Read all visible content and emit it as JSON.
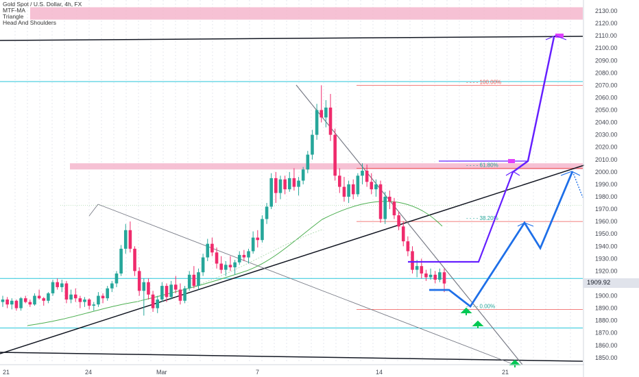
{
  "chart_data": {
    "type": "candlestick",
    "title": "Gold Spot / U.S. Dollar, 4h, FX",
    "indicators": [
      "MTF-MA",
      "Triangle",
      "Head And Shoulders"
    ],
    "ylim": [
      1842,
      2138
    ],
    "y_ticks": [
      "2130.00",
      "2120.00",
      "2110.00",
      "2100.00",
      "2090.00",
      "2080.00",
      "2070.00",
      "2060.00",
      "2050.00",
      "2040.00",
      "2030.00",
      "2020.00",
      "2010.00",
      "2000.00",
      "1990.00",
      "1980.00",
      "1970.00",
      "1960.00",
      "1950.00",
      "1940.00",
      "1930.00",
      "1920.00",
      "1910.00",
      "1900.00",
      "1890.00",
      "1880.00",
      "1870.00",
      "1860.00",
      "1850.00"
    ],
    "x_ticks": [
      "21",
      "24",
      "Mar",
      "7",
      "14",
      "21"
    ],
    "last_price": "1909.92",
    "fib_levels": [
      {
        "label": "100.00%",
        "value": 2070
      },
      {
        "label": "61.80%",
        "value": 2003
      },
      {
        "label": "38.20%",
        "value": 1960
      },
      {
        "label": "0.00%",
        "value": 1889
      }
    ],
    "horizontal_levels": [
      1914,
      2073,
      1874
    ],
    "pink_zones": [
      [
        2123,
        2133
      ],
      [
        2002,
        2007
      ]
    ],
    "candles_ohlc": [
      [
        1895,
        1900,
        1891,
        1897
      ],
      [
        1897,
        1899,
        1890,
        1893
      ],
      [
        1893,
        1898,
        1889,
        1896
      ],
      [
        1896,
        1897,
        1888,
        1890
      ],
      [
        1890,
        1899,
        1888,
        1898
      ],
      [
        1898,
        1900,
        1894,
        1895
      ],
      [
        1895,
        1897,
        1891,
        1893
      ],
      [
        1893,
        1902,
        1892,
        1900
      ],
      [
        1900,
        1905,
        1897,
        1898
      ],
      [
        1898,
        1899,
        1892,
        1896
      ],
      [
        1896,
        1903,
        1894,
        1902
      ],
      [
        1902,
        1913,
        1900,
        1911
      ],
      [
        1911,
        1914,
        1905,
        1907
      ],
      [
        1907,
        1913,
        1903,
        1910
      ],
      [
        1910,
        1912,
        1894,
        1897
      ],
      [
        1897,
        1905,
        1894,
        1901
      ],
      [
        1901,
        1906,
        1895,
        1898
      ],
      [
        1898,
        1900,
        1890,
        1895
      ],
      [
        1895,
        1899,
        1891,
        1897
      ],
      [
        1897,
        1898,
        1889,
        1892
      ],
      [
        1892,
        1895,
        1888,
        1893
      ],
      [
        1893,
        1903,
        1891,
        1900
      ],
      [
        1900,
        1902,
        1894,
        1898
      ],
      [
        1898,
        1908,
        1896,
        1906
      ],
      [
        1906,
        1912,
        1903,
        1910
      ],
      [
        1910,
        1920,
        1907,
        1918
      ],
      [
        1918,
        1941,
        1916,
        1938
      ],
      [
        1938,
        1958,
        1934,
        1953
      ],
      [
        1953,
        1960,
        1935,
        1938
      ],
      [
        1938,
        1940,
        1916,
        1920
      ],
      [
        1920,
        1923,
        1900,
        1904
      ],
      [
        1904,
        1914,
        1884,
        1911
      ],
      [
        1911,
        1914,
        1897,
        1901
      ],
      [
        1901,
        1904,
        1887,
        1890
      ],
      [
        1890,
        1900,
        1886,
        1897
      ],
      [
        1897,
        1911,
        1895,
        1908
      ],
      [
        1908,
        1910,
        1895,
        1899
      ],
      [
        1899,
        1912,
        1897,
        1909
      ],
      [
        1909,
        1916,
        1902,
        1905
      ],
      [
        1905,
        1910,
        1893,
        1896
      ],
      [
        1896,
        1908,
        1894,
        1906
      ],
      [
        1906,
        1920,
        1904,
        1917
      ],
      [
        1917,
        1924,
        1906,
        1908
      ],
      [
        1908,
        1922,
        1905,
        1919
      ],
      [
        1919,
        1934,
        1916,
        1931
      ],
      [
        1931,
        1946,
        1928,
        1942
      ],
      [
        1942,
        1947,
        1932,
        1935
      ],
      [
        1935,
        1939,
        1922,
        1926
      ],
      [
        1926,
        1932,
        1918,
        1921
      ],
      [
        1921,
        1928,
        1916,
        1925
      ],
      [
        1925,
        1932,
        1920,
        1923
      ],
      [
        1923,
        1929,
        1917,
        1927
      ],
      [
        1927,
        1936,
        1925,
        1933
      ],
      [
        1933,
        1937,
        1928,
        1931
      ],
      [
        1931,
        1938,
        1926,
        1936
      ],
      [
        1936,
        1952,
        1934,
        1947
      ],
      [
        1947,
        1953,
        1939,
        1945
      ],
      [
        1945,
        1965,
        1943,
        1962
      ],
      [
        1962,
        1975,
        1958,
        1972
      ],
      [
        1972,
        1999,
        1970,
        1995
      ],
      [
        1995,
        2000,
        1975,
        1983
      ],
      [
        1983,
        1997,
        1978,
        1994
      ],
      [
        1994,
        1997,
        1982,
        1986
      ],
      [
        1986,
        2000,
        1984,
        1995
      ],
      [
        1995,
        2003,
        1985,
        1988
      ],
      [
        1988,
        1996,
        1981,
        1993
      ],
      [
        1993,
        2004,
        1990,
        2002
      ],
      [
        2002,
        2017,
        1999,
        2014
      ],
      [
        2014,
        2034,
        2010,
        2030
      ],
      [
        2030,
        2055,
        2026,
        2050
      ],
      [
        2050,
        2070,
        2040,
        2044
      ],
      [
        2044,
        2058,
        2036,
        2052
      ],
      [
        2052,
        2063,
        2025,
        2030
      ],
      [
        2030,
        2035,
        1993,
        1997
      ],
      [
        1997,
        2003,
        1983,
        1988
      ],
      [
        1988,
        1996,
        1976,
        1980
      ],
      [
        1980,
        1993,
        1975,
        1990
      ],
      [
        1990,
        1994,
        1978,
        1982
      ],
      [
        1982,
        1999,
        1980,
        1997
      ],
      [
        1997,
        2007,
        1990,
        2001
      ],
      [
        2001,
        2006,
        1988,
        1992
      ],
      [
        1992,
        1999,
        1982,
        1986
      ],
      [
        1986,
        1994,
        1980,
        1990
      ],
      [
        1990,
        1993,
        1959,
        1962
      ],
      [
        1962,
        1984,
        1958,
        1980
      ],
      [
        1980,
        1985,
        1970,
        1976
      ],
      [
        1976,
        1979,
        1962,
        1965
      ],
      [
        1965,
        1968,
        1953,
        1956
      ],
      [
        1956,
        1960,
        1940,
        1944
      ],
      [
        1944,
        1948,
        1932,
        1936
      ],
      [
        1936,
        1940,
        1918,
        1921
      ],
      [
        1921,
        1929,
        1915,
        1924
      ],
      [
        1924,
        1930,
        1914,
        1918
      ],
      [
        1918,
        1921,
        1912,
        1915
      ],
      [
        1915,
        1922,
        1913,
        1917
      ],
      [
        1917,
        1920,
        1910,
        1913
      ],
      [
        1913,
        1922,
        1911,
        1919
      ],
      [
        1919,
        1922,
        1903,
        1909.92
      ]
    ],
    "projections": [
      {
        "name": "purple",
        "points": [
          [
            1,
            1926.5
          ],
          [
            1.45,
            1927
          ],
          [
            1.65,
            2000
          ],
          [
            1.9,
            2008
          ],
          [
            2.2,
            2008
          ],
          [
            2.45,
            2110
          ]
        ]
      },
      {
        "name": "blue",
        "points": [
          [
            0,
            1905
          ],
          [
            0.4,
            1905
          ],
          [
            1.0,
            1892
          ],
          [
            1.85,
            1958
          ],
          [
            2.1,
            1943
          ],
          [
            2.55,
            2000
          ]
        ]
      }
    ]
  }
}
